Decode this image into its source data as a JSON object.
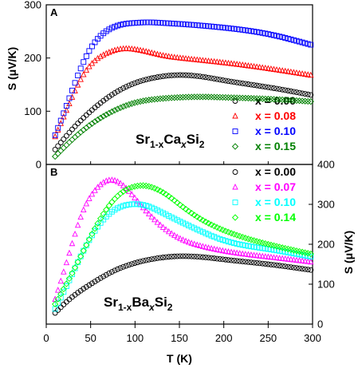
{
  "chart_data": [
    {
      "panel": "A",
      "type": "scatter",
      "xlabel": "T (K)",
      "ylabel": "S (μV/K)",
      "xlim": [
        0,
        300
      ],
      "ylim": [
        0,
        300
      ],
      "x_ticks": [
        "0",
        "50",
        "100",
        "150",
        "200",
        "250",
        "300"
      ],
      "y_ticks": [
        "0",
        "100",
        "200",
        "300"
      ],
      "legend_placement": "lower-right",
      "formula": {
        "base": "Sr",
        "sub1": "1-x",
        "mid": "Ca",
        "sub2": "x",
        "tail": "Si",
        "sub3": "2"
      },
      "series": [
        {
          "name": "x = 0.00",
          "color": "#000000",
          "marker": "circle",
          "x": [
            10,
            25,
            50,
            75,
            100,
            125,
            150,
            175,
            200,
            250,
            300
          ],
          "y": [
            28,
            58,
            100,
            132,
            153,
            164,
            168,
            165,
            158,
            145,
            130
          ]
        },
        {
          "name": "x = 0.08",
          "color": "#ff0000",
          "marker": "triangle",
          "x": [
            10,
            25,
            40,
            55,
            70,
            85,
            100,
            115,
            130,
            150,
            200,
            250,
            300
          ],
          "y": [
            52,
            110,
            163,
            195,
            210,
            217,
            216,
            211,
            205,
            200,
            191,
            180,
            167
          ]
        },
        {
          "name": "x = 0.10",
          "color": "#0000ff",
          "marker": "square",
          "x": [
            10,
            25,
            40,
            55,
            70,
            85,
            100,
            115,
            130,
            150,
            200,
            250,
            300
          ],
          "y": [
            55,
            120,
            185,
            230,
            253,
            263,
            266,
            267,
            266,
            264,
            257,
            245,
            224
          ]
        },
        {
          "name": "x = 0.15",
          "color": "#008000",
          "marker": "diamond",
          "x": [
            10,
            25,
            50,
            75,
            100,
            125,
            150,
            175,
            200,
            250,
            300
          ],
          "y": [
            15,
            40,
            75,
            100,
            116,
            123,
            126,
            127,
            126,
            123,
            118
          ]
        }
      ]
    },
    {
      "panel": "B",
      "type": "scatter",
      "xlabel": "T (K)",
      "ylabel": "S (μV/K)",
      "xlim": [
        0,
        300
      ],
      "ylim": [
        0,
        400
      ],
      "x_ticks": [
        "0",
        "50",
        "100",
        "150",
        "200",
        "250",
        "300"
      ],
      "y_ticks": [
        "0",
        "100",
        "200",
        "300",
        "400"
      ],
      "y_axis_side": "right",
      "legend_placement": "top-right",
      "formula": {
        "base": "Sr",
        "sub1": "1-x",
        "mid": "Ba",
        "sub2": "x",
        "tail": "Si",
        "sub3": "2"
      },
      "series": [
        {
          "name": "x = 0.00",
          "color": "#000000",
          "marker": "circle",
          "x": [
            10,
            25,
            50,
            75,
            100,
            125,
            150,
            175,
            200,
            250,
            300
          ],
          "y": [
            28,
            60,
            100,
            132,
            153,
            165,
            170,
            168,
            162,
            150,
            135
          ]
        },
        {
          "name": "x = 0.07",
          "color": "#ff00ff",
          "marker": "triangle",
          "x": [
            10,
            25,
            40,
            55,
            70,
            85,
            100,
            125,
            150,
            175,
            200,
            250,
            300
          ],
          "y": [
            62,
            170,
            275,
            335,
            360,
            350,
            315,
            255,
            215,
            195,
            183,
            168,
            155
          ]
        },
        {
          "name": "x = 0.10",
          "color": "#00ffff",
          "marker": "square",
          "x": [
            10,
            25,
            40,
            60,
            80,
            95,
            105,
            115,
            130,
            150,
            175,
            200,
            250,
            300
          ],
          "y": [
            38,
            105,
            175,
            250,
            290,
            300,
            300,
            295,
            280,
            258,
            232,
            210,
            188,
            168
          ]
        },
        {
          "name": "x = 0.14",
          "color": "#00ff00",
          "marker": "diamond",
          "x": [
            10,
            25,
            40,
            60,
            80,
            100,
            110,
            120,
            135,
            150,
            175,
            200,
            250,
            300
          ],
          "y": [
            50,
            110,
            175,
            260,
            320,
            345,
            347,
            342,
            325,
            300,
            262,
            235,
            200,
            175
          ]
        }
      ]
    }
  ]
}
